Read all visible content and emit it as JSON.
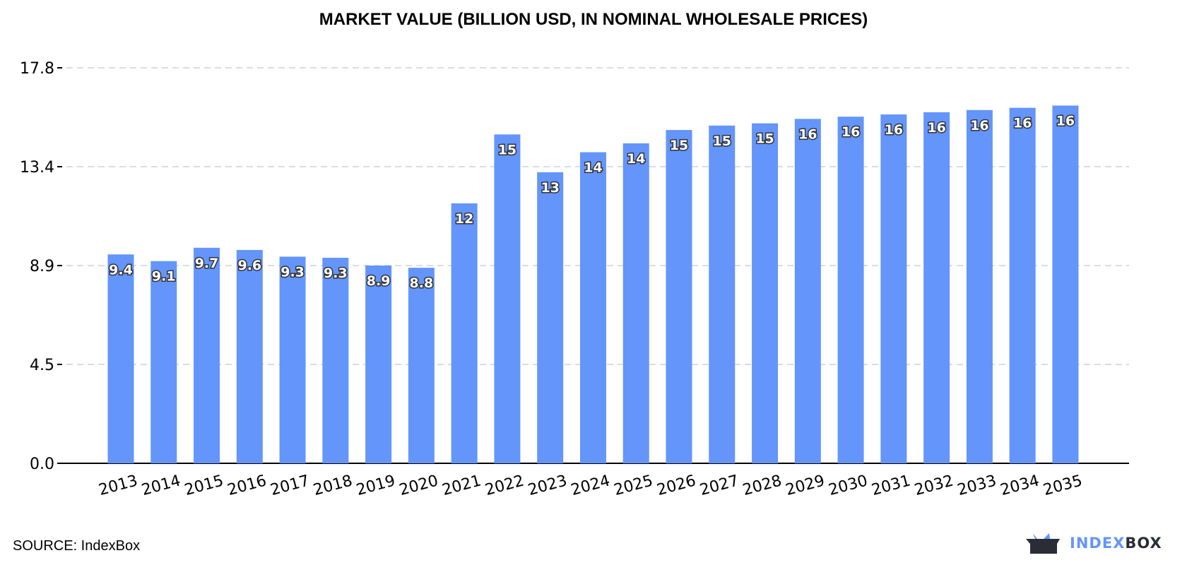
{
  "chart_data": {
    "type": "bar",
    "title": "MARKET VALUE (BILLION USD, IN NOMINAL WHOLESALE PRICES)",
    "xlabel": "",
    "ylabel": "",
    "ylim": [
      0,
      17.8
    ],
    "yticks": [
      "0.0",
      "4.5",
      "8.9",
      "13.4",
      "17.8"
    ],
    "ytick_values": [
      0,
      4.45,
      8.9,
      13.35,
      17.8
    ],
    "grid": true,
    "categories": [
      "2013",
      "2014",
      "2015",
      "2016",
      "2017",
      "2018",
      "2019",
      "2020",
      "2021",
      "2022",
      "2023",
      "2024",
      "2025",
      "2026",
      "2027",
      "2028",
      "2029",
      "2030",
      "2031",
      "2032",
      "2033",
      "2034",
      "2035"
    ],
    "values": [
      9.4,
      9.1,
      9.7,
      9.6,
      9.3,
      9.25,
      8.9,
      8.8,
      11.7,
      14.8,
      13.1,
      14.0,
      14.4,
      15.0,
      15.2,
      15.3,
      15.5,
      15.6,
      15.7,
      15.8,
      15.9,
      16.0,
      16.1
    ],
    "data_labels": [
      "9.4",
      "9.1",
      "9.7",
      "9.6",
      "9.3",
      "9.3",
      "8.9",
      "8.8",
      "12",
      "15",
      "13",
      "14",
      "14",
      "15",
      "15",
      "15",
      "16",
      "16",
      "16",
      "16",
      "16",
      "16",
      "16"
    ],
    "bar_color": "#6495fb"
  },
  "footer": {
    "source": "SOURCE: IndexBox",
    "logo_part1": "INDEX",
    "logo_part2": "BOX"
  }
}
